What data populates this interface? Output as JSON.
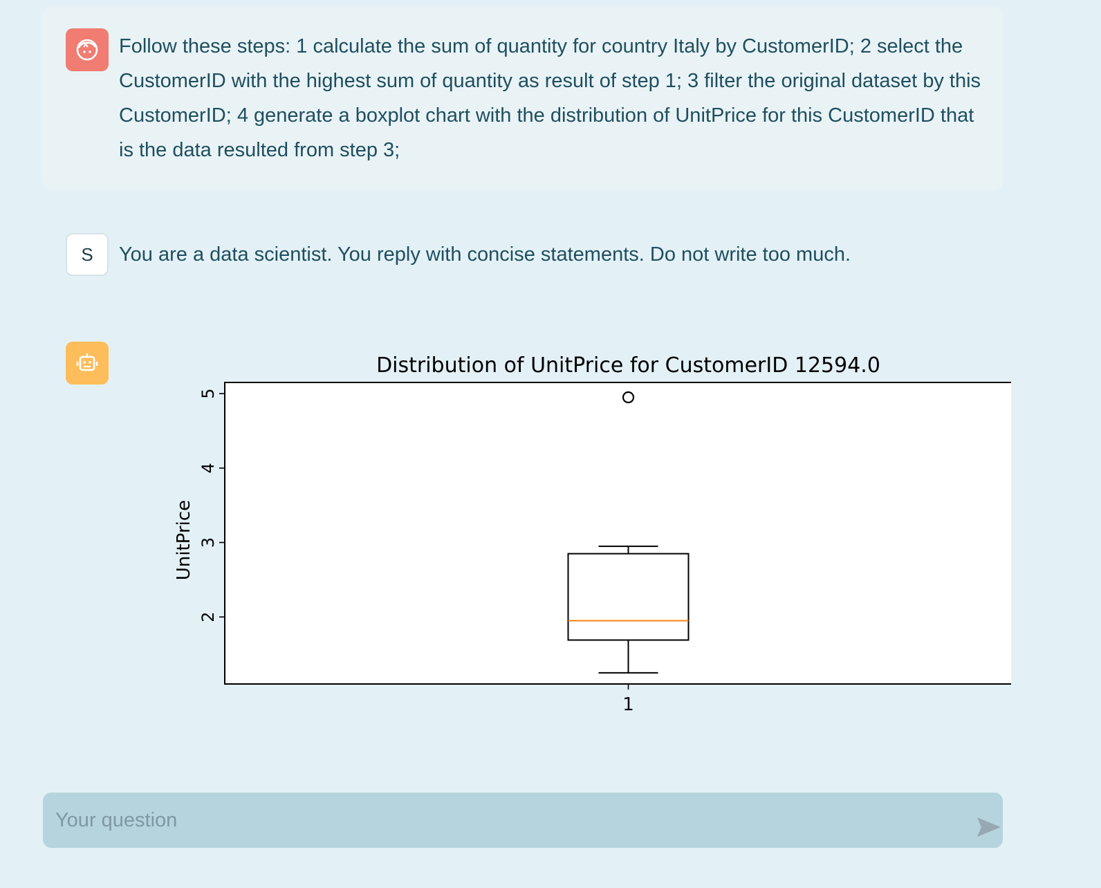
{
  "messages": {
    "user": {
      "icon": "face-icon",
      "text": "Follow these steps: 1 calculate the sum of quantity for country Italy by CustomerID; 2 select the CustomerID with the highest sum of quantity as result of step 1; 3 filter the original dataset by this CustomerID; 4 generate a boxplot chart with the distribution of UnitPrice for this CustomerID that is the data resulted from step 3;"
    },
    "system": {
      "avatar_letter": "S",
      "text": "You are a data scientist. You reply with concise statements. Do not write too much."
    },
    "bot": {
      "icon": "robot-icon"
    }
  },
  "chart_data": {
    "type": "boxplot",
    "title": "Distribution of UnitPrice for CustomerID 12594.0",
    "xlabel": "",
    "ylabel": "UnitPrice",
    "categories": [
      "1"
    ],
    "boxes": [
      {
        "whisker_low": 1.25,
        "q1": 1.69,
        "median": 1.95,
        "q3": 2.85,
        "whisker_high": 2.95,
        "outliers": [
          4.95
        ]
      }
    ],
    "yticks": [
      2,
      3,
      4,
      5
    ],
    "ylim": [
      1.1,
      5.15
    ],
    "colors": {
      "box": "#000000",
      "median": "#ff7f0e"
    }
  },
  "input": {
    "placeholder": "Your question",
    "send_icon": "send-icon"
  },
  "colors": {
    "background": "#e3f1f6",
    "user_avatar": "#f07c72",
    "bot_avatar": "#fdbd5b",
    "text": "#1f4e5f",
    "input_bg": "#b6d4de"
  }
}
